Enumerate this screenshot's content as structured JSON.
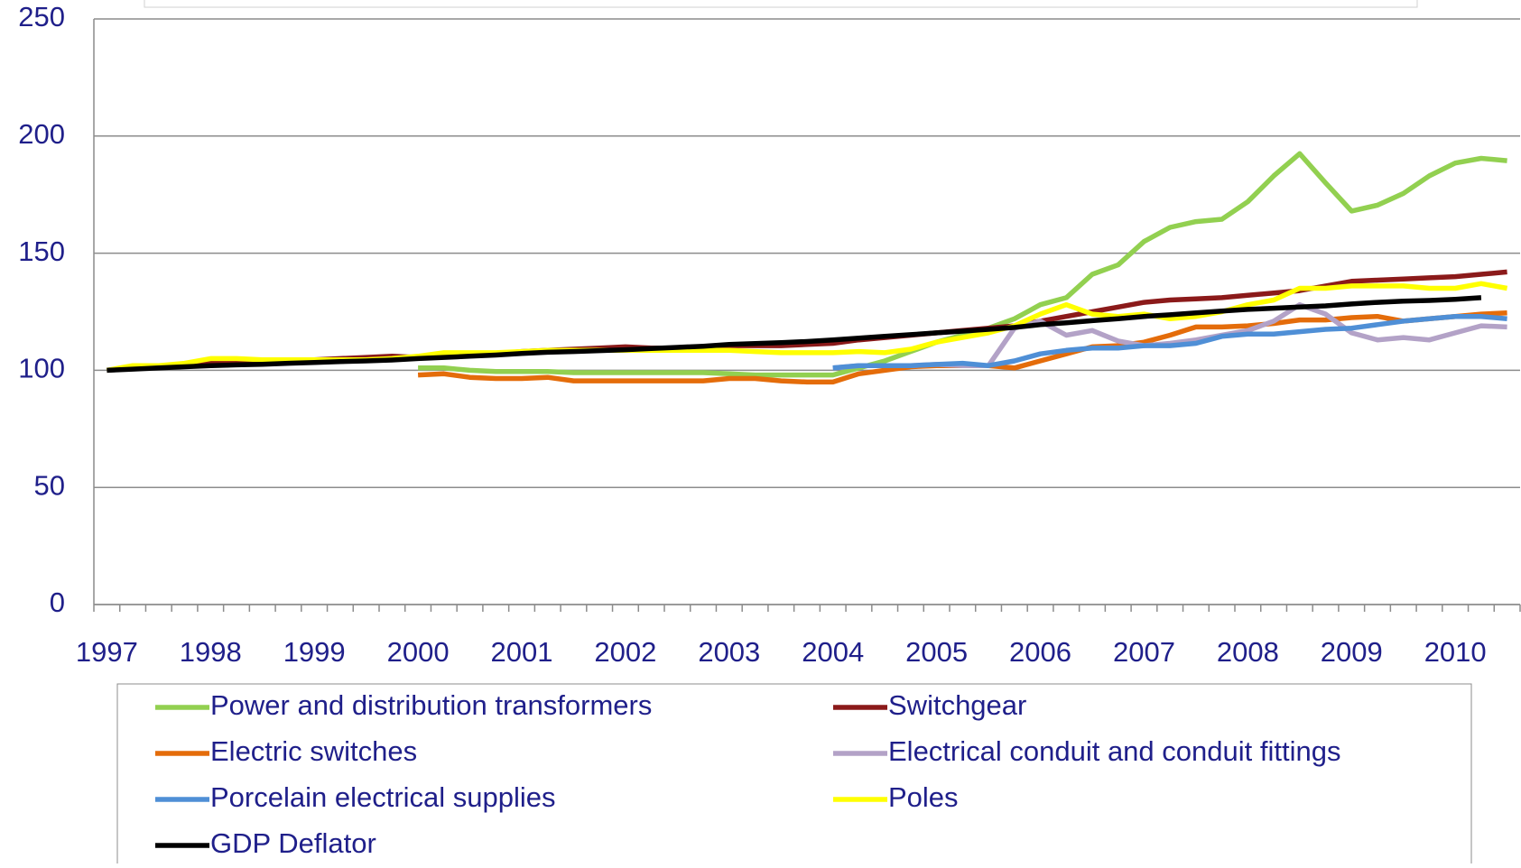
{
  "chart_data": {
    "type": "line",
    "categories": [
      "1997",
      null,
      null,
      null,
      "1998",
      null,
      null,
      null,
      "1999",
      null,
      null,
      null,
      "2000",
      null,
      null,
      null,
      "2001",
      null,
      null,
      null,
      "2002",
      null,
      null,
      null,
      "2003",
      null,
      null,
      null,
      "2004",
      null,
      null,
      null,
      "2005",
      null,
      null,
      null,
      "2006",
      null,
      null,
      null,
      "2007",
      null,
      null,
      null,
      "2008",
      null,
      null,
      null,
      "2009",
      null,
      null,
      null,
      "2010",
      null,
      null
    ],
    "ylim": [
      0,
      250
    ],
    "yticks": [
      0,
      50,
      100,
      150,
      200,
      250
    ],
    "grid": true,
    "series": [
      {
        "name": "Power and distribution transformers",
        "color": "#92d050",
        "values": [
          null,
          null,
          null,
          null,
          null,
          null,
          null,
          null,
          null,
          null,
          null,
          null,
          101,
          101,
          100,
          99.5,
          99.5,
          99.5,
          99,
          99,
          99,
          99,
          99,
          99,
          98.5,
          98,
          98,
          98,
          98,
          101,
          104,
          108,
          112,
          115,
          118,
          122,
          128,
          131,
          141,
          145,
          155,
          161,
          163.5,
          164.5,
          172,
          183,
          192.5,
          180,
          168,
          170.5,
          175.5,
          183,
          188.5,
          190.5,
          189.5
        ]
      },
      {
        "name": "Switchgear",
        "color": "#8b1a1a",
        "values": [
          100,
          101,
          101.5,
          102,
          103,
          103.5,
          104,
          104,
          104.5,
          105,
          105.5,
          106,
          105.5,
          106,
          106.5,
          107,
          108,
          108.5,
          109,
          109.5,
          110,
          109.5,
          109.5,
          110,
          110.5,
          110.5,
          110.5,
          111,
          111.5,
          113,
          114,
          115,
          116,
          117,
          118,
          119,
          121,
          123,
          125,
          127,
          129,
          130,
          130.5,
          131,
          132,
          133,
          134,
          136,
          138,
          138.5,
          139,
          139.5,
          140,
          141,
          142
        ]
      },
      {
        "name": "Electric switches",
        "color": "#e46c0a",
        "values": [
          null,
          null,
          null,
          null,
          null,
          null,
          null,
          null,
          null,
          null,
          null,
          null,
          98,
          98.5,
          97,
          96.5,
          96.5,
          97,
          95.5,
          95.5,
          95.5,
          95.5,
          95.5,
          95.5,
          96.5,
          96.5,
          95.5,
          95,
          95,
          98.5,
          100,
          101.5,
          102,
          102,
          102,
          101,
          104,
          107,
          110,
          110.5,
          112,
          115,
          118.5,
          118.5,
          119,
          120,
          121.5,
          121.5,
          122.5,
          123,
          121,
          122,
          123,
          124,
          124.5
        ]
      },
      {
        "name": "Electrical conduit and conduit fittings",
        "color": "#b3a2c7",
        "values": [
          null,
          null,
          null,
          null,
          null,
          null,
          null,
          null,
          null,
          null,
          null,
          null,
          null,
          null,
          null,
          null,
          null,
          null,
          null,
          null,
          null,
          null,
          null,
          null,
          null,
          null,
          null,
          null,
          101,
          102,
          102,
          102,
          102.5,
          102,
          102,
          118,
          121,
          115,
          117,
          112.5,
          110.5,
          111.5,
          113,
          115,
          117,
          121,
          128,
          124,
          116,
          113,
          114,
          113,
          116,
          119,
          118.5
        ]
      },
      {
        "name": "Porcelain electrical supplies",
        "color": "#4f8fd6",
        "values": [
          null,
          null,
          null,
          null,
          null,
          null,
          null,
          null,
          null,
          null,
          null,
          null,
          null,
          null,
          null,
          null,
          null,
          null,
          null,
          null,
          null,
          null,
          null,
          null,
          null,
          null,
          null,
          null,
          101,
          102,
          102,
          102,
          102.5,
          103,
          102,
          104,
          107,
          108.5,
          109.5,
          109.5,
          110.5,
          110.5,
          111.5,
          114.5,
          115.5,
          115.5,
          116.5,
          117.5,
          118,
          119.5,
          121,
          122,
          123,
          123,
          122
        ]
      },
      {
        "name": "Poles",
        "color": "#ffff00",
        "values": [
          100,
          102,
          102,
          103,
          105,
          105,
          104.5,
          104.5,
          104.5,
          104.5,
          104.5,
          105,
          106,
          107.5,
          107.5,
          107.5,
          108,
          108.5,
          108.5,
          108.5,
          108.5,
          108.5,
          108.5,
          108.5,
          108.5,
          108,
          107.5,
          107.5,
          107.5,
          108,
          107.5,
          109,
          112,
          114,
          116,
          119,
          124,
          128,
          124,
          123,
          124,
          122,
          123,
          125,
          128,
          130,
          135,
          135,
          136,
          136,
          136,
          135,
          135,
          137,
          135
        ]
      },
      {
        "name": "GDP Deflator",
        "color": "#000000",
        "values": [
          100,
          100.5,
          101,
          101.5,
          102,
          102.3,
          102.6,
          103,
          103.3,
          103.7,
          104,
          104.4,
          105,
          105.5,
          106,
          106.5,
          107.2,
          107.7,
          108,
          108.4,
          108.8,
          109.3,
          109.8,
          110.3,
          111,
          111.4,
          111.8,
          112.3,
          113,
          113.7,
          114.5,
          115.2,
          116,
          116.7,
          117.5,
          118.3,
          119.5,
          120.3,
          121.2,
          122,
          123,
          123.7,
          124.5,
          125.3,
          126,
          126.5,
          127,
          127.5,
          128.3,
          129,
          129.5,
          129.8,
          130.3,
          131,
          null
        ]
      }
    ]
  }
}
